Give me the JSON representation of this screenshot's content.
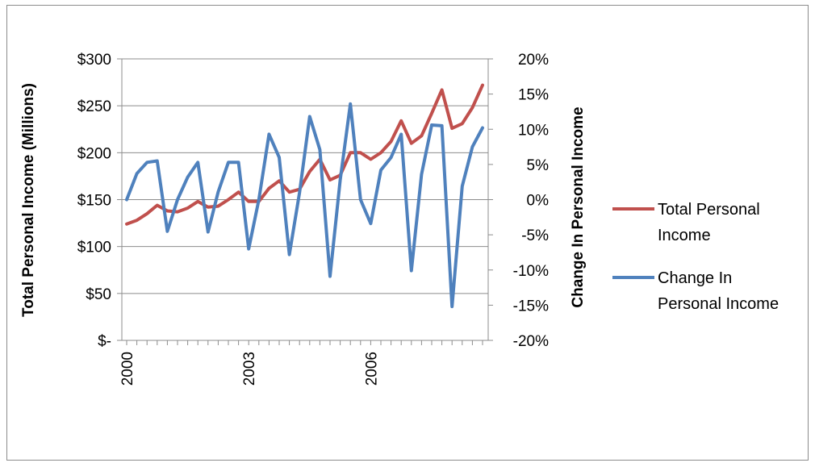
{
  "chart_data": {
    "type": "line",
    "xlabel": "",
    "ylabel": "Total Personal Income (Millions)",
    "y2label": "Change In Personal Income",
    "x_tick_labels": [
      "2000",
      "2003",
      "2006"
    ],
    "y_tick_labels": [
      "$300",
      "$250",
      "$200",
      "$150",
      "$100",
      "$50",
      "$-"
    ],
    "y2_tick_labels": [
      "20%",
      "15%",
      "10%",
      "5%",
      "0%",
      "-5%",
      "-10%",
      "-15%",
      "-20%"
    ],
    "ylim": [
      0,
      300
    ],
    "y2lim": [
      -20,
      20
    ],
    "grid": true,
    "legend_position": "right",
    "quarters_per_year": 4,
    "series": [
      {
        "name": "Total Personal Income",
        "axis": "left",
        "color": "#c0504d",
        "values": [
          124,
          128,
          135,
          144,
          138,
          137,
          141,
          148,
          142,
          143,
          150,
          158,
          148,
          148,
          162,
          170,
          158,
          161,
          180,
          193,
          171,
          176,
          200,
          200,
          193,
          200,
          212,
          234,
          210,
          218,
          242,
          267,
          226,
          231,
          248,
          272
        ]
      },
      {
        "name": "Change In Personal Income",
        "axis": "right",
        "color": "#4f81bd",
        "values": [
          0.0,
          3.7,
          5.3,
          5.5,
          -4.5,
          0.0,
          3.2,
          5.3,
          -4.6,
          1.1,
          5.3,
          5.3,
          -7.0,
          0.0,
          9.3,
          6.0,
          -7.8,
          1.0,
          11.8,
          7.1,
          -10.9,
          2.8,
          13.6,
          0.0,
          -3.4,
          4.2,
          6.0,
          9.3,
          -10.1,
          3.6,
          10.6,
          10.5,
          -15.2,
          1.9,
          7.5,
          10.2
        ]
      }
    ]
  }
}
